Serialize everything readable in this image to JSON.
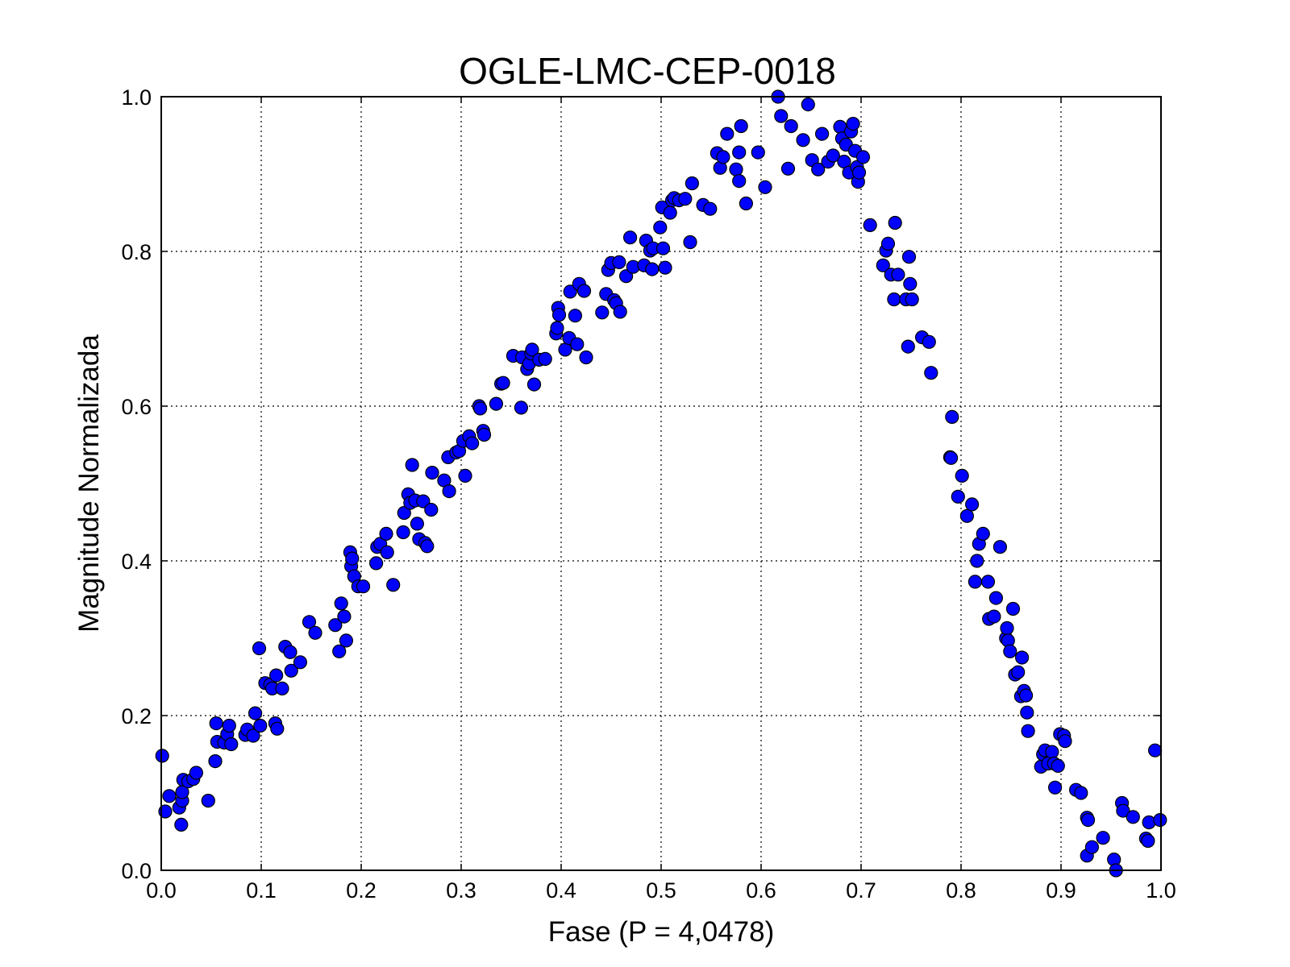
{
  "chart_data": {
    "type": "scatter",
    "title": "OGLE-LMC-CEP-0018",
    "xlabel": "Fase (P = 4,0478)",
    "ylabel": "Magnitude Normalizada",
    "xlim": [
      0,
      1
    ],
    "ylim": [
      0,
      1
    ],
    "xticks": [
      "0.0",
      "0.1",
      "0.2",
      "0.3",
      "0.4",
      "0.5",
      "0.6",
      "0.7",
      "0.8",
      "0.9",
      "1.0"
    ],
    "yticks": [
      "0.0",
      "0.2",
      "0.4",
      "0.6",
      "0.8",
      "1.0"
    ],
    "grid": true,
    "marker_color": "#0000ff",
    "points": [
      [
        0.001,
        0.148
      ],
      [
        0.004,
        0.076
      ],
      [
        0.008,
        0.096
      ],
      [
        0.018,
        0.081
      ],
      [
        0.02,
        0.059
      ],
      [
        0.021,
        0.09
      ],
      [
        0.021,
        0.101
      ],
      [
        0.022,
        0.117
      ],
      [
        0.027,
        0.115
      ],
      [
        0.032,
        0.118
      ],
      [
        0.035,
        0.126
      ],
      [
        0.047,
        0.09
      ],
      [
        0.054,
        0.141
      ],
      [
        0.055,
        0.19
      ],
      [
        0.056,
        0.166
      ],
      [
        0.063,
        0.165
      ],
      [
        0.066,
        0.176
      ],
      [
        0.068,
        0.187
      ],
      [
        0.07,
        0.163
      ],
      [
        0.084,
        0.175
      ],
      [
        0.086,
        0.182
      ],
      [
        0.092,
        0.174
      ],
      [
        0.094,
        0.203
      ],
      [
        0.098,
        0.287
      ],
      [
        0.099,
        0.187
      ],
      [
        0.104,
        0.242
      ],
      [
        0.109,
        0.24
      ],
      [
        0.111,
        0.235
      ],
      [
        0.114,
        0.19
      ],
      [
        0.115,
        0.252
      ],
      [
        0.116,
        0.183
      ],
      [
        0.121,
        0.235
      ],
      [
        0.124,
        0.289
      ],
      [
        0.129,
        0.282
      ],
      [
        0.13,
        0.258
      ],
      [
        0.139,
        0.269
      ],
      [
        0.148,
        0.321
      ],
      [
        0.154,
        0.307
      ],
      [
        0.174,
        0.317
      ],
      [
        0.178,
        0.283
      ],
      [
        0.18,
        0.345
      ],
      [
        0.183,
        0.328
      ],
      [
        0.185,
        0.297
      ],
      [
        0.189,
        0.411
      ],
      [
        0.19,
        0.393
      ],
      [
        0.191,
        0.403
      ],
      [
        0.193,
        0.38
      ],
      [
        0.197,
        0.367
      ],
      [
        0.202,
        0.367
      ],
      [
        0.215,
        0.397
      ],
      [
        0.216,
        0.418
      ],
      [
        0.219,
        0.422
      ],
      [
        0.225,
        0.435
      ],
      [
        0.226,
        0.411
      ],
      [
        0.232,
        0.369
      ],
      [
        0.242,
        0.437
      ],
      [
        0.243,
        0.462
      ],
      [
        0.247,
        0.486
      ],
      [
        0.249,
        0.475
      ],
      [
        0.251,
        0.524
      ],
      [
        0.254,
        0.478
      ],
      [
        0.256,
        0.448
      ],
      [
        0.258,
        0.428
      ],
      [
        0.262,
        0.477
      ],
      [
        0.264,
        0.423
      ],
      [
        0.266,
        0.419
      ],
      [
        0.27,
        0.466
      ],
      [
        0.271,
        0.514
      ],
      [
        0.283,
        0.504
      ],
      [
        0.287,
        0.534
      ],
      [
        0.288,
        0.49
      ],
      [
        0.295,
        0.54
      ],
      [
        0.298,
        0.542
      ],
      [
        0.302,
        0.555
      ],
      [
        0.304,
        0.51
      ],
      [
        0.308,
        0.561
      ],
      [
        0.311,
        0.552
      ],
      [
        0.318,
        0.6
      ],
      [
        0.319,
        0.597
      ],
      [
        0.322,
        0.568
      ],
      [
        0.323,
        0.563
      ],
      [
        0.335,
        0.603
      ],
      [
        0.34,
        0.629
      ],
      [
        0.342,
        0.63
      ],
      [
        0.352,
        0.665
      ],
      [
        0.36,
        0.598
      ],
      [
        0.361,
        0.663
      ],
      [
        0.366,
        0.648
      ],
      [
        0.368,
        0.655
      ],
      [
        0.37,
        0.668
      ],
      [
        0.371,
        0.673
      ],
      [
        0.373,
        0.628
      ],
      [
        0.378,
        0.66
      ],
      [
        0.384,
        0.661
      ],
      [
        0.395,
        0.694
      ],
      [
        0.396,
        0.701
      ],
      [
        0.397,
        0.727
      ],
      [
        0.398,
        0.718
      ],
      [
        0.404,
        0.673
      ],
      [
        0.408,
        0.688
      ],
      [
        0.409,
        0.748
      ],
      [
        0.414,
        0.717
      ],
      [
        0.416,
        0.68
      ],
      [
        0.418,
        0.758
      ],
      [
        0.423,
        0.749
      ],
      [
        0.425,
        0.663
      ],
      [
        0.441,
        0.721
      ],
      [
        0.445,
        0.745
      ],
      [
        0.447,
        0.776
      ],
      [
        0.45,
        0.785
      ],
      [
        0.453,
        0.737
      ],
      [
        0.455,
        0.733
      ],
      [
        0.458,
        0.786
      ],
      [
        0.459,
        0.722
      ],
      [
        0.465,
        0.768
      ],
      [
        0.469,
        0.818
      ],
      [
        0.472,
        0.78
      ],
      [
        0.483,
        0.782
      ],
      [
        0.485,
        0.814
      ],
      [
        0.489,
        0.801
      ],
      [
        0.491,
        0.777
      ],
      [
        0.492,
        0.804
      ],
      [
        0.499,
        0.831
      ],
      [
        0.501,
        0.857
      ],
      [
        0.502,
        0.804
      ],
      [
        0.504,
        0.779
      ],
      [
        0.509,
        0.85
      ],
      [
        0.511,
        0.866
      ],
      [
        0.513,
        0.869
      ],
      [
        0.518,
        0.866
      ],
      [
        0.524,
        0.868
      ],
      [
        0.529,
        0.812
      ],
      [
        0.531,
        0.888
      ],
      [
        0.542,
        0.86
      ],
      [
        0.549,
        0.855
      ],
      [
        0.556,
        0.927
      ],
      [
        0.559,
        0.908
      ],
      [
        0.562,
        0.922
      ],
      [
        0.566,
        0.952
      ],
      [
        0.575,
        0.906
      ],
      [
        0.578,
        0.928
      ],
      [
        0.578,
        0.891
      ],
      [
        0.58,
        0.962
      ],
      [
        0.585,
        0.862
      ],
      [
        0.597,
        0.928
      ],
      [
        0.604,
        0.883
      ],
      [
        0.617,
        1.0
      ],
      [
        0.62,
        0.975
      ],
      [
        0.627,
        0.907
      ],
      [
        0.63,
        0.962
      ],
      [
        0.642,
        0.944
      ],
      [
        0.647,
        0.99
      ],
      [
        0.651,
        0.918
      ],
      [
        0.657,
        0.906
      ],
      [
        0.661,
        0.952
      ],
      [
        0.667,
        0.916
      ],
      [
        0.672,
        0.924
      ],
      [
        0.679,
        0.961
      ],
      [
        0.681,
        0.946
      ],
      [
        0.683,
        0.916
      ],
      [
        0.685,
        0.938
      ],
      [
        0.688,
        0.902
      ],
      [
        0.69,
        0.955
      ],
      [
        0.692,
        0.965
      ],
      [
        0.694,
        0.93
      ],
      [
        0.696,
        0.909
      ],
      [
        0.697,
        0.89
      ],
      [
        0.698,
        0.902
      ],
      [
        0.702,
        0.922
      ],
      [
        0.709,
        0.834
      ],
      [
        0.722,
        0.782
      ],
      [
        0.725,
        0.801
      ],
      [
        0.727,
        0.81
      ],
      [
        0.73,
        0.77
      ],
      [
        0.733,
        0.738
      ],
      [
        0.734,
        0.837
      ],
      [
        0.737,
        0.77
      ],
      [
        0.745,
        0.738
      ],
      [
        0.747,
        0.677
      ],
      [
        0.748,
        0.793
      ],
      [
        0.749,
        0.758
      ],
      [
        0.751,
        0.738
      ],
      [
        0.761,
        0.689
      ],
      [
        0.768,
        0.683
      ],
      [
        0.77,
        0.643
      ],
      [
        0.789,
        0.534
      ],
      [
        0.79,
        0.533
      ],
      [
        0.791,
        0.586
      ],
      [
        0.797,
        0.483
      ],
      [
        0.801,
        0.51
      ],
      [
        0.806,
        0.458
      ],
      [
        0.811,
        0.473
      ],
      [
        0.814,
        0.373
      ],
      [
        0.816,
        0.4
      ],
      [
        0.818,
        0.422
      ],
      [
        0.822,
        0.435
      ],
      [
        0.827,
        0.373
      ],
      [
        0.828,
        0.325
      ],
      [
        0.833,
        0.328
      ],
      [
        0.835,
        0.352
      ],
      [
        0.839,
        0.418
      ],
      [
        0.845,
        0.3
      ],
      [
        0.846,
        0.313
      ],
      [
        0.847,
        0.297
      ],
      [
        0.849,
        0.283
      ],
      [
        0.852,
        0.338
      ],
      [
        0.854,
        0.253
      ],
      [
        0.857,
        0.256
      ],
      [
        0.86,
        0.225
      ],
      [
        0.861,
        0.275
      ],
      [
        0.863,
        0.232
      ],
      [
        0.865,
        0.226
      ],
      [
        0.866,
        0.204
      ],
      [
        0.867,
        0.18
      ],
      [
        0.88,
        0.134
      ],
      [
        0.882,
        0.15
      ],
      [
        0.884,
        0.155
      ],
      [
        0.887,
        0.138
      ],
      [
        0.891,
        0.153
      ],
      [
        0.893,
        0.138
      ],
      [
        0.894,
        0.107
      ],
      [
        0.897,
        0.135
      ],
      [
        0.899,
        0.176
      ],
      [
        0.903,
        0.174
      ],
      [
        0.904,
        0.167
      ],
      [
        0.915,
        0.104
      ],
      [
        0.92,
        0.1
      ],
      [
        0.926,
        0.068
      ],
      [
        0.926,
        0.019
      ],
      [
        0.927,
        0.065
      ],
      [
        0.931,
        0.03
      ],
      [
        0.942,
        0.042
      ],
      [
        0.953,
        0.014
      ],
      [
        0.955,
        0.0
      ],
      [
        0.961,
        0.087
      ],
      [
        0.962,
        0.077
      ],
      [
        0.972,
        0.069
      ],
      [
        0.985,
        0.041
      ],
      [
        0.987,
        0.038
      ],
      [
        0.988,
        0.062
      ],
      [
        0.994,
        0.155
      ],
      [
        0.999,
        0.065
      ]
    ]
  }
}
